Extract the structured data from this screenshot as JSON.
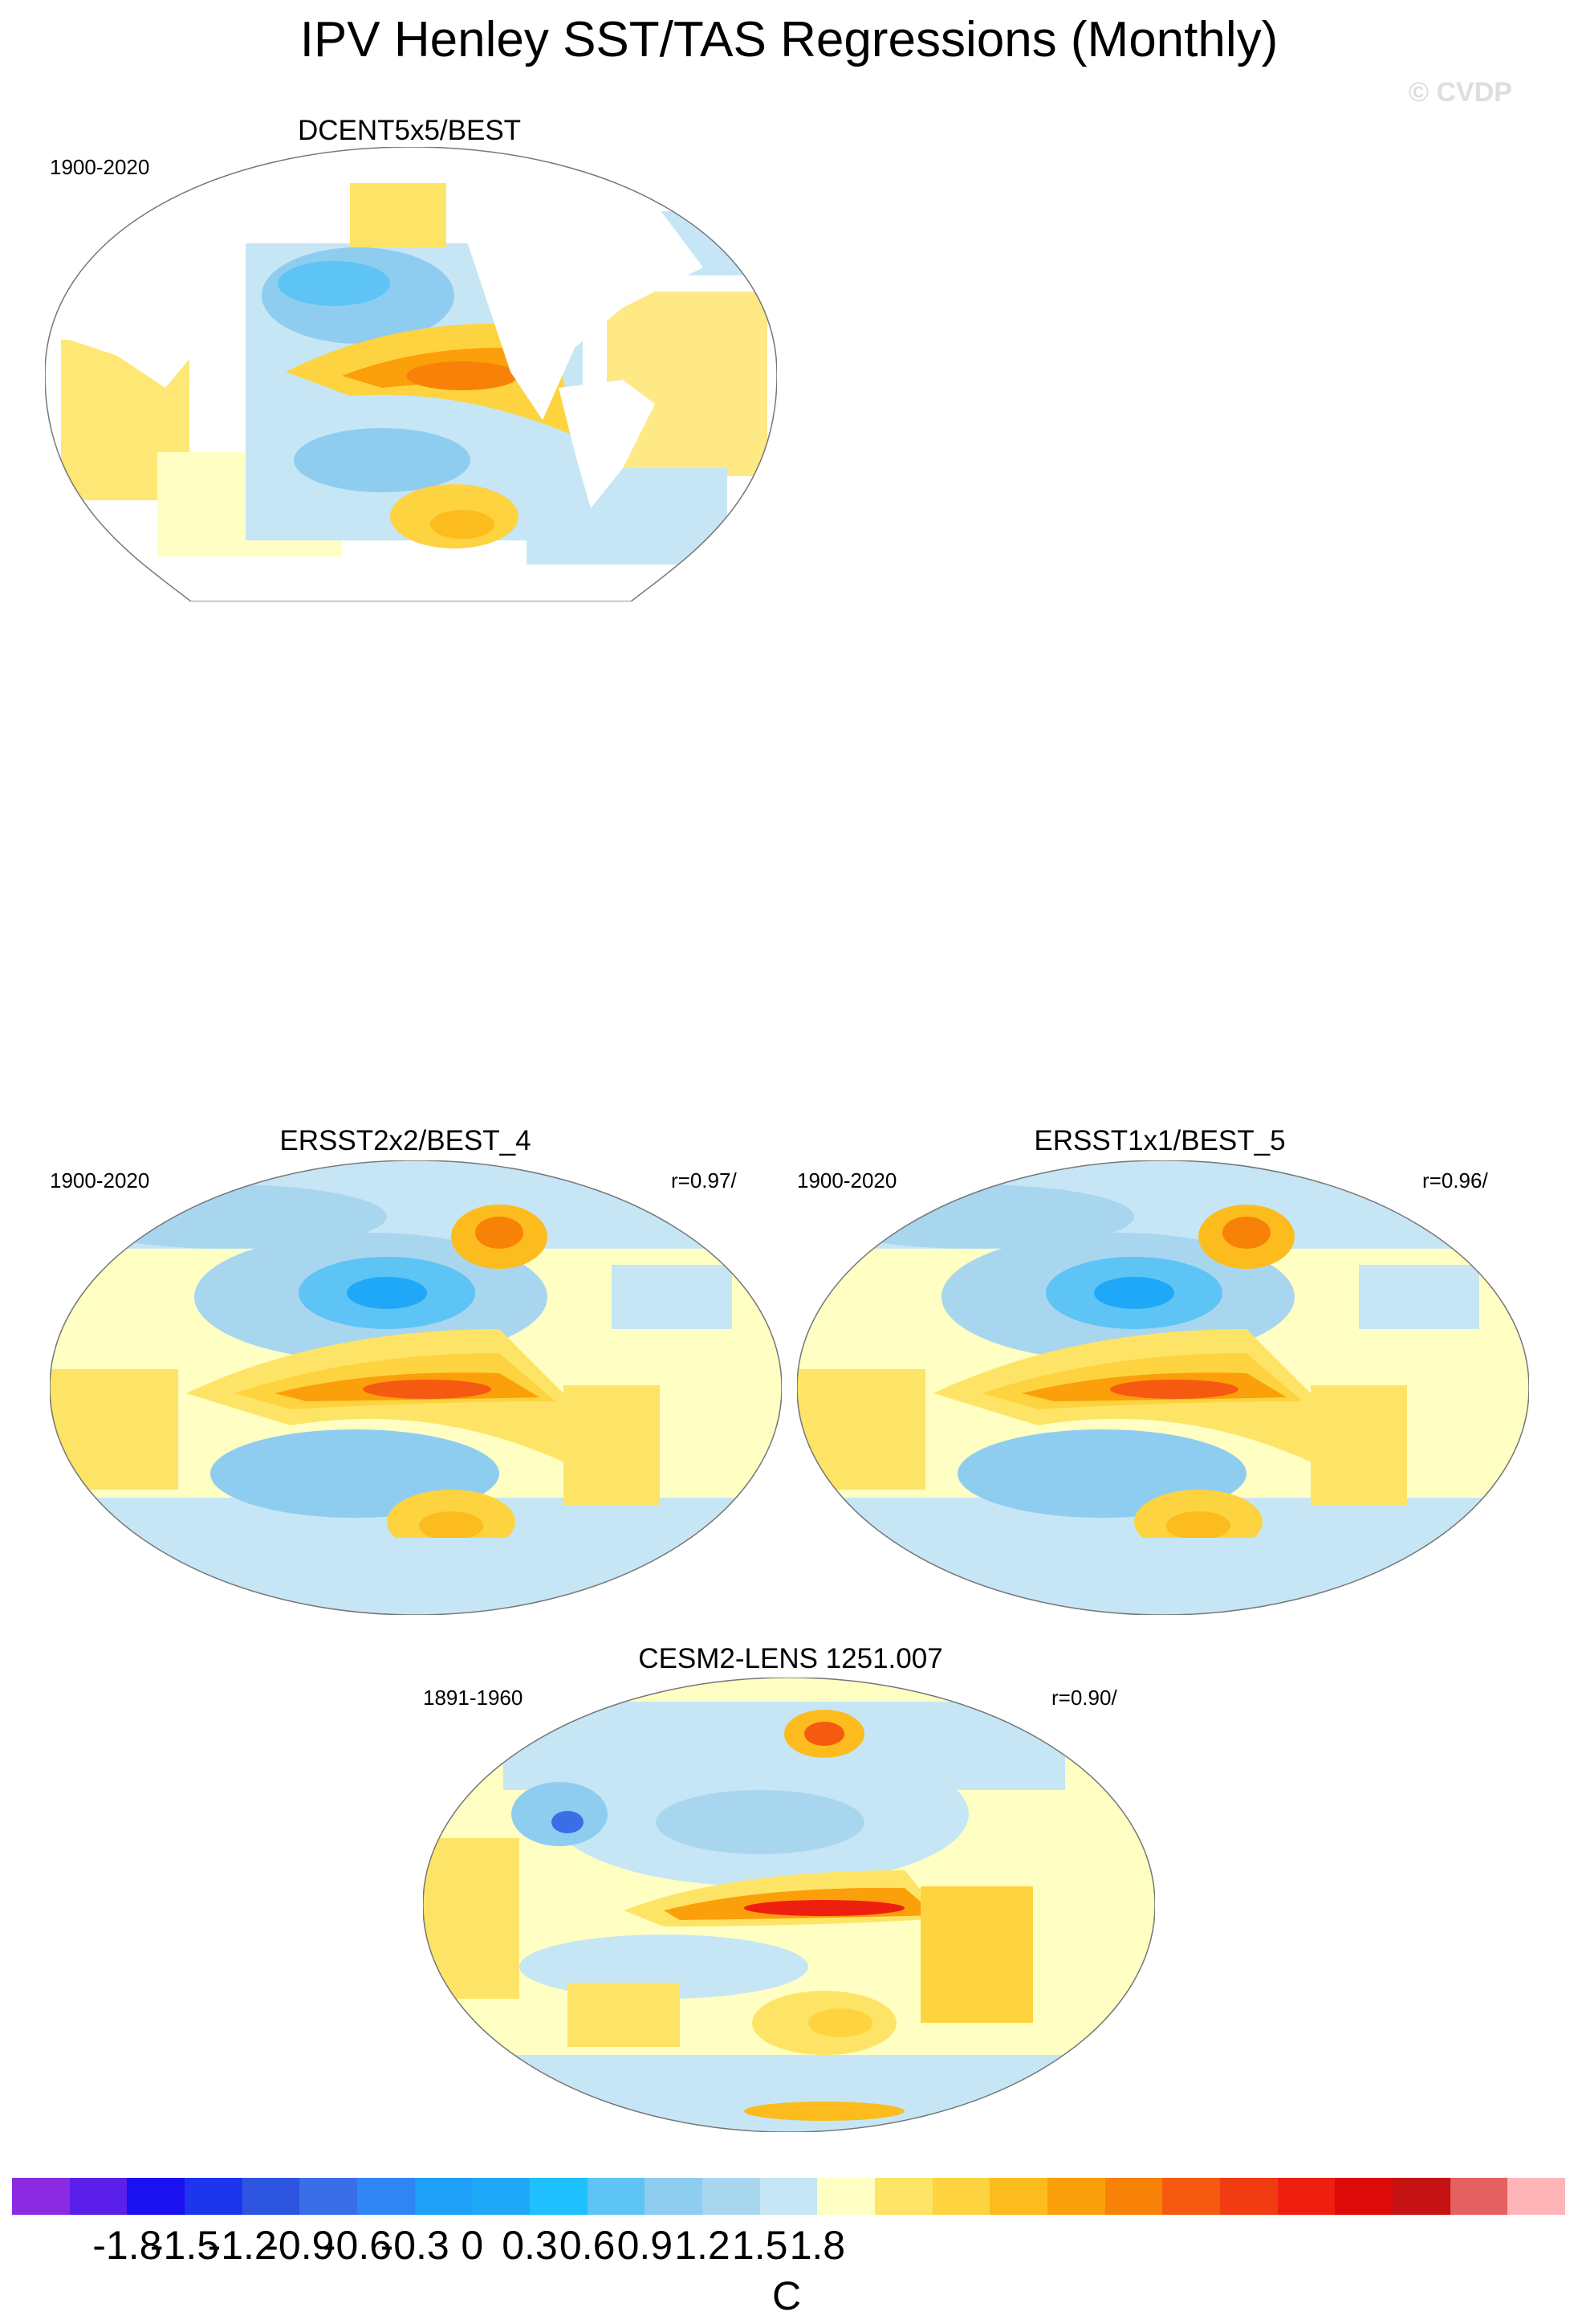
{
  "title": "IPV Henley SST/TAS Regressions (Monthly)",
  "watermark": "© CVDP",
  "panels": [
    {
      "name": "DCENT5x5/BEST",
      "period": "1900-2020",
      "corr": ""
    },
    {
      "name": "ERSST2x2/BEST_4",
      "period": "1900-2020",
      "corr": "r=0.97/"
    },
    {
      "name": "ERSST1x1/BEST_5",
      "period": "1900-2020",
      "corr": "r=0.96/"
    },
    {
      "name": "CESM2-LENS 1251.007",
      "period": "1891-1960",
      "corr": "r=0.90/"
    }
  ],
  "colorbar": {
    "unit": "C",
    "ticks": [
      "-1.8",
      "-1.5",
      "-1.2",
      "-0.9",
      "-0.6",
      "-0.3",
      "0",
      "0.3",
      "0.6",
      "0.9",
      "1.2",
      "1.5",
      "1.8"
    ],
    "colors": [
      "#8a2be2",
      "#5a1fe8",
      "#1a10f0",
      "#1e35ee",
      "#2e55e0",
      "#3a6ee6",
      "#2f86f2",
      "#1e9ff8",
      "#20a8f8",
      "#1ec0ff",
      "#5dc4f5",
      "#8fcdf0",
      "#a9d6ef",
      "#c6e6f6",
      "#ffffc4",
      "#fee466",
      "#fdd340",
      "#fcbc1e",
      "#fb9f0a",
      "#f88207",
      "#f55a10",
      "#f03c10",
      "#ef1f10",
      "#dd0a0a",
      "#c51212",
      "#e56060",
      "#ffb5b8"
    ]
  }
}
